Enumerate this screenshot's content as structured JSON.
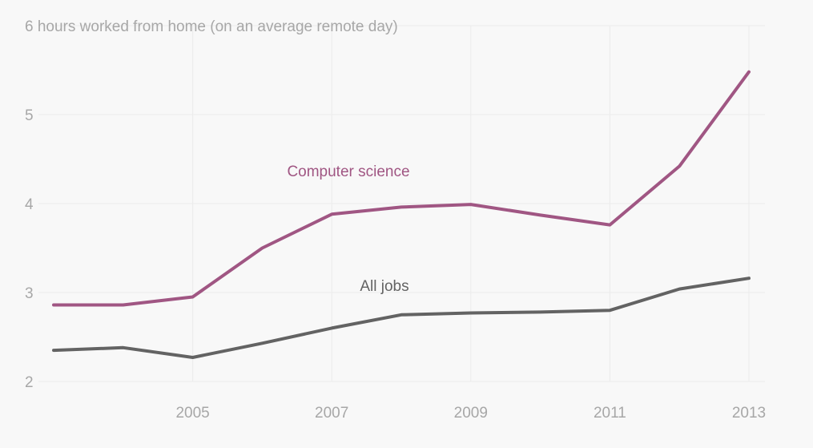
{
  "chart_data": {
    "type": "line",
    "title": "",
    "ylabel": "hours worked from home (on an average remote day)",
    "xlabel": "",
    "x": [
      2003,
      2004,
      2005,
      2006,
      2007,
      2008,
      2009,
      2010,
      2011,
      2012,
      2013
    ],
    "xlim": [
      2003,
      2013
    ],
    "ylim": [
      2,
      6
    ],
    "x_ticks": [
      2005,
      2007,
      2009,
      2011,
      2013
    ],
    "y_ticks": [
      2,
      3,
      4,
      5,
      6
    ],
    "grid": true,
    "series": [
      {
        "name": "Computer science",
        "color": "#a05683",
        "values": [
          2.86,
          2.86,
          2.95,
          3.5,
          3.88,
          3.96,
          3.99,
          3.87,
          3.76,
          4.42,
          5.48
        ]
      },
      {
        "name": "All jobs",
        "color": "#636363",
        "values": [
          2.35,
          2.38,
          2.27,
          2.43,
          2.6,
          2.75,
          2.77,
          2.78,
          2.8,
          3.04,
          3.16
        ]
      }
    ]
  }
}
